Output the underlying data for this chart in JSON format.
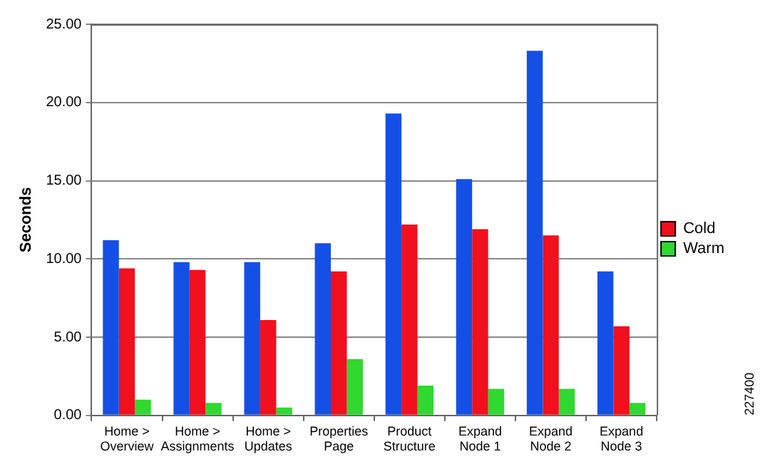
{
  "chart_data": {
    "type": "bar",
    "ylabel": "Seconds",
    "categories": [
      "Home > Overview",
      "Home > Assignments",
      "Home > Updates",
      "Properties Page",
      "Product Structure",
      "Expand Node 1",
      "Expand Node 2",
      "Expand Node 3"
    ],
    "series": [
      {
        "color": "#1450e6",
        "values": [
          11.2,
          9.8,
          9.8,
          11.0,
          19.3,
          15.1,
          23.3,
          9.2
        ]
      },
      {
        "name": "Cold",
        "color": "#f0101e",
        "values": [
          9.4,
          9.3,
          6.1,
          9.2,
          12.2,
          11.9,
          11.5,
          5.7
        ]
      },
      {
        "name": "Warm",
        "color": "#30d830",
        "values": [
          1.0,
          0.8,
          0.5,
          3.6,
          1.9,
          1.7,
          1.7,
          0.8
        ]
      }
    ],
    "ylim": [
      0,
      25
    ],
    "yticks": [
      {
        "value": 0,
        "label": "0.00"
      },
      {
        "value": 5,
        "label": "5.00"
      },
      {
        "value": 10,
        "label": "10.00"
      },
      {
        "value": 15,
        "label": "15.00"
      },
      {
        "value": 20,
        "label": "20.00"
      },
      {
        "value": 25,
        "label": "25.00"
      }
    ],
    "grid": "y",
    "legend": "right",
    "annotations": [
      "227400"
    ]
  }
}
